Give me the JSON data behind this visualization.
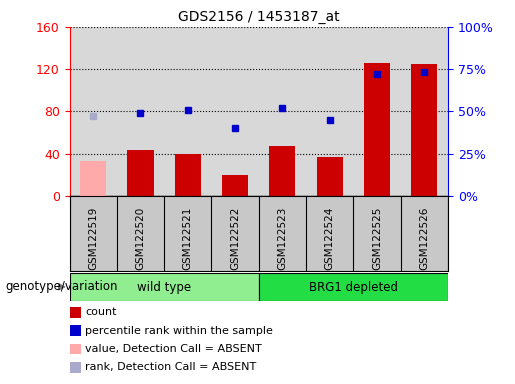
{
  "title": "GDS2156 / 1453187_at",
  "samples": [
    "GSM122519",
    "GSM122520",
    "GSM122521",
    "GSM122522",
    "GSM122523",
    "GSM122524",
    "GSM122525",
    "GSM122526"
  ],
  "count_values": [
    33,
    43,
    40,
    20,
    47,
    37,
    126,
    125
  ],
  "count_absent": [
    true,
    false,
    false,
    false,
    false,
    false,
    false,
    false
  ],
  "percentile_pct": [
    47,
    49,
    51,
    40,
    52,
    45,
    72,
    73
  ],
  "percentile_absent": [
    true,
    false,
    false,
    false,
    false,
    false,
    false,
    false
  ],
  "left_ylim": [
    0,
    160
  ],
  "right_ylim": [
    0,
    100
  ],
  "left_yticks": [
    0,
    40,
    80,
    120,
    160
  ],
  "right_yticks": [
    0,
    25,
    50,
    75,
    100
  ],
  "right_yticklabels": [
    "0%",
    "25%",
    "50%",
    "75%",
    "100%"
  ],
  "bar_color_present": "#cc0000",
  "bar_color_absent": "#ffaaaa",
  "dot_color_present": "#0000cc",
  "dot_color_absent": "#aaaacc",
  "plot_bg": "#d8d8d8",
  "xtick_bg": "#c8c8c8",
  "wt_bg": "#90ee90",
  "brg_bg": "#22dd44",
  "legend_labels": [
    "count",
    "percentile rank within the sample",
    "value, Detection Call = ABSENT",
    "rank, Detection Call = ABSENT"
  ],
  "legend_colors": [
    "#cc0000",
    "#0000cc",
    "#ffaaaa",
    "#aaaacc"
  ],
  "figsize": [
    5.15,
    3.84
  ],
  "dpi": 100
}
